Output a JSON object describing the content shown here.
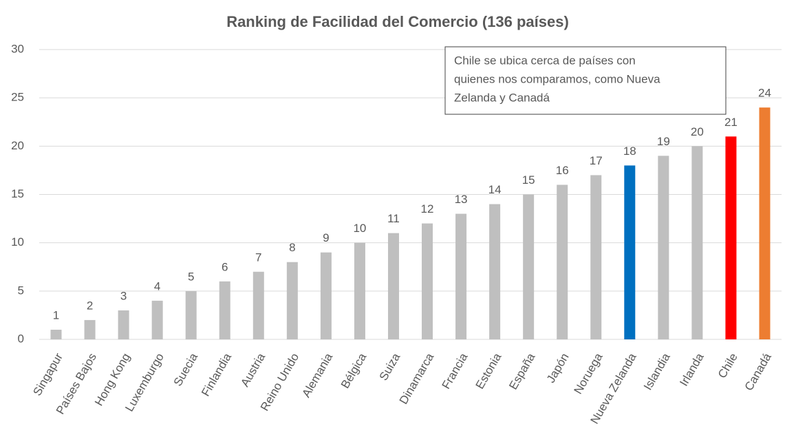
{
  "chart_data": {
    "type": "bar",
    "title": "Ranking de Facilidad del Comercio (136 países)",
    "categories": [
      "Singapur",
      "Países Bajos",
      "Hong Kong",
      "Luxemburgo",
      "Suecia",
      "Finlandia",
      "Austria",
      "Reino Unido",
      "Alemania",
      "Bélgica",
      "Suiza",
      "Dinamarca",
      "Francia",
      "Estonia",
      "España",
      "Japón",
      "Noruega",
      "Nueva Zelanda",
      "Islandia",
      "Irlanda",
      "Chile",
      "Canadá"
    ],
    "values": [
      1,
      2,
      3,
      4,
      5,
      6,
      7,
      8,
      9,
      10,
      11,
      12,
      13,
      14,
      15,
      16,
      17,
      18,
      19,
      20,
      21,
      24
    ],
    "colors": [
      "#bfbfbf",
      "#bfbfbf",
      "#bfbfbf",
      "#bfbfbf",
      "#bfbfbf",
      "#bfbfbf",
      "#bfbfbf",
      "#bfbfbf",
      "#bfbfbf",
      "#bfbfbf",
      "#bfbfbf",
      "#bfbfbf",
      "#bfbfbf",
      "#bfbfbf",
      "#bfbfbf",
      "#bfbfbf",
      "#bfbfbf",
      "#0070c0",
      "#bfbfbf",
      "#bfbfbf",
      "#ff0000",
      "#ed7d31"
    ],
    "ylim": [
      0,
      30
    ],
    "yticks": [
      0,
      5,
      10,
      15,
      20,
      25,
      30
    ],
    "grid": true,
    "annotation": [
      "Chile se ubica cerca de países con",
      "quienes nos comparamos, como Nueva",
      "Zelanda y Canadá"
    ]
  }
}
